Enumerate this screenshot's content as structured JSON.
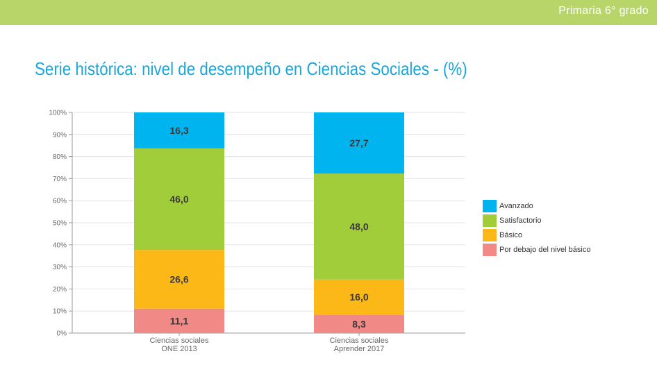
{
  "header": {
    "grade": "Primaria 6° grado"
  },
  "title": "Serie histórica: nivel de desempeño en Ciencias Sociales - (%)",
  "colors": {
    "banner": "#b8d56a",
    "title": "#1ba6d9",
    "avanzado": "#00b5ef",
    "satisfactorio": "#a2cd3a",
    "basico": "#fbb817",
    "por_debajo": "#f18a86"
  },
  "chart_data": {
    "type": "bar",
    "stacked": true,
    "categories": [
      [
        "Ciencias sociales",
        "ONE 2013"
      ],
      [
        "Ciencias sociales",
        "Aprender 2017"
      ]
    ],
    "series": [
      {
        "name": "Por debajo del nivel básico",
        "values": [
          11.1,
          8.3
        ],
        "labels": [
          "11,1",
          "8,3"
        ],
        "color": "#f18a86"
      },
      {
        "name": "Básico",
        "values": [
          26.6,
          16.0
        ],
        "labels": [
          "26,6",
          "16,0"
        ],
        "color": "#fbb817"
      },
      {
        "name": "Satisfactorio",
        "values": [
          46.0,
          48.0
        ],
        "labels": [
          "46,0",
          "48,0"
        ],
        "color": "#a2cd3a"
      },
      {
        "name": "Avanzado",
        "values": [
          16.3,
          27.7
        ],
        "labels": [
          "16,3",
          "27,7"
        ],
        "color": "#00b5ef"
      }
    ],
    "legend_order": [
      "Avanzado",
      "Satisfactorio",
      "Básico",
      "Por debajo del nivel básico"
    ],
    "y_ticks": [
      "0%",
      "10%",
      "20%",
      "30%",
      "40%",
      "50%",
      "60%",
      "70%",
      "80%",
      "90%",
      "100%"
    ],
    "ylim": [
      0,
      100
    ],
    "grid": true,
    "legend_position": "right"
  }
}
